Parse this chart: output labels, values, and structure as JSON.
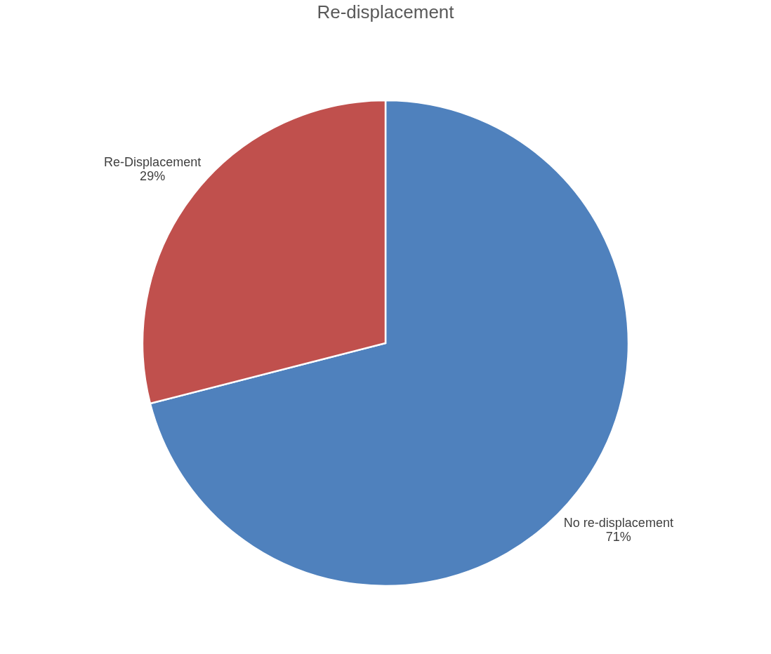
{
  "chart_data": {
    "type": "pie",
    "title": "Re-displacement",
    "categories": [
      "No re-displacement",
      "Re-Displacement"
    ],
    "values": [
      71,
      29
    ],
    "colors": [
      "#4f81bd",
      "#c0504d"
    ],
    "value_labels": [
      "71%",
      "29%"
    ],
    "legend": false
  }
}
